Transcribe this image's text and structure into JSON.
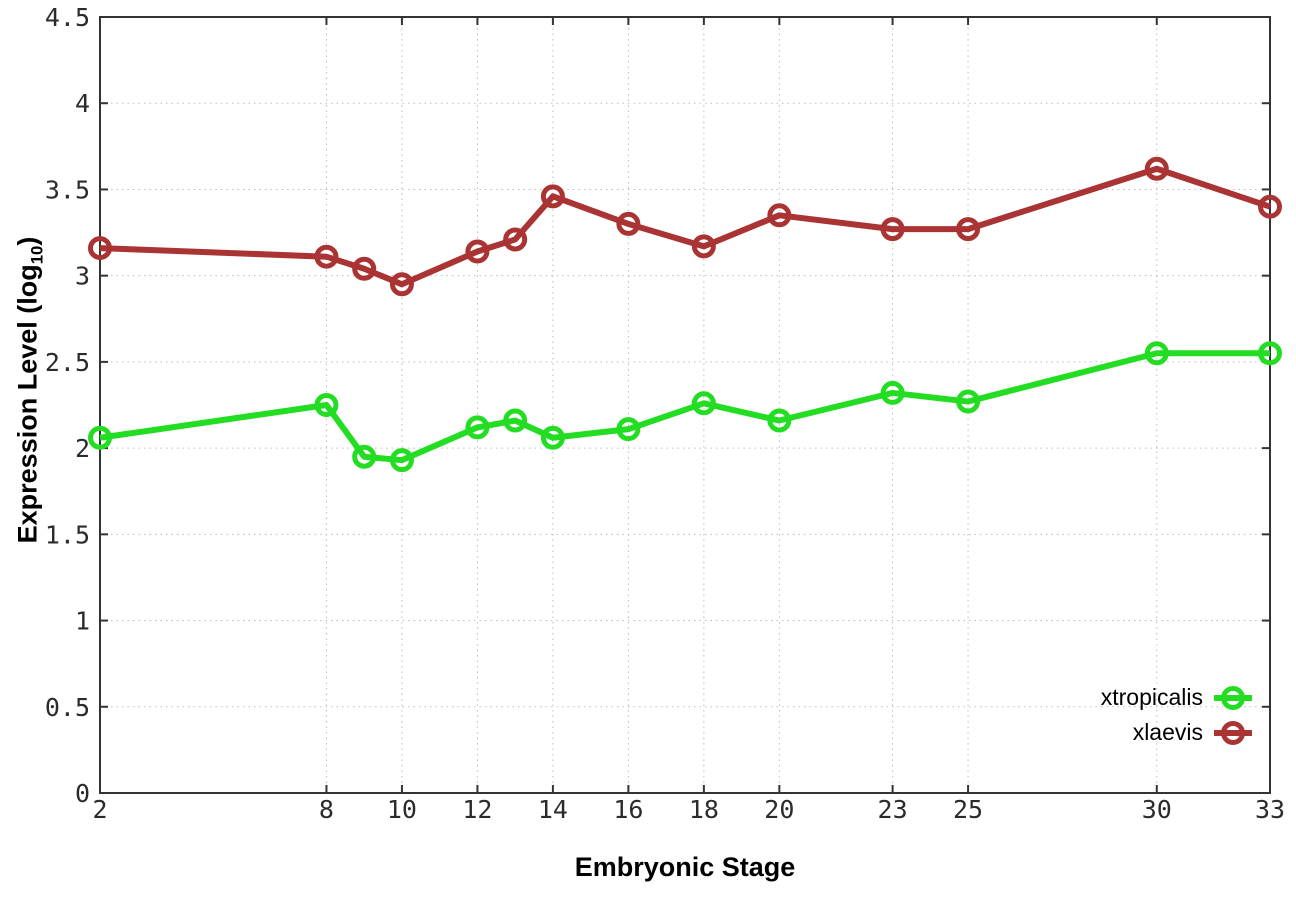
{
  "chart_data": {
    "type": "line",
    "title": "",
    "xlabel": "Embryonic Stage",
    "ylabel": "Expression Level (log10)",
    "ylabel_parts": {
      "prefix": "Expression Level (log",
      "sub": "10",
      "suffix": ")"
    },
    "x": [
      2,
      8,
      9,
      10,
      12,
      13,
      14,
      16,
      18,
      20,
      23,
      25,
      30,
      33
    ],
    "x_ticks": [
      2,
      8,
      10,
      12,
      14,
      16,
      18,
      20,
      23,
      25,
      30,
      33
    ],
    "y_ticks": [
      0,
      0.5,
      1,
      1.5,
      2,
      2.5,
      3,
      3.5,
      4,
      4.5
    ],
    "xlim": [
      2,
      33
    ],
    "ylim": [
      0,
      4.5
    ],
    "grid": true,
    "legend_position": "inside-bottom-right",
    "series": [
      {
        "name": "xtropicalis",
        "color": "#22dd22",
        "values": [
          2.06,
          2.25,
          1.95,
          1.93,
          2.12,
          2.16,
          2.06,
          2.11,
          2.26,
          2.16,
          2.32,
          2.27,
          2.55,
          2.55
        ]
      },
      {
        "name": "xlaevis",
        "color": "#aa3333",
        "values": [
          3.16,
          3.11,
          3.04,
          2.95,
          3.14,
          3.21,
          3.46,
          3.3,
          3.17,
          3.35,
          3.27,
          3.27,
          3.62,
          3.4
        ]
      }
    ]
  },
  "colors": {
    "axis": "#333333",
    "grid": "#bdbdbd",
    "tick_label": "#2b2b2b"
  }
}
